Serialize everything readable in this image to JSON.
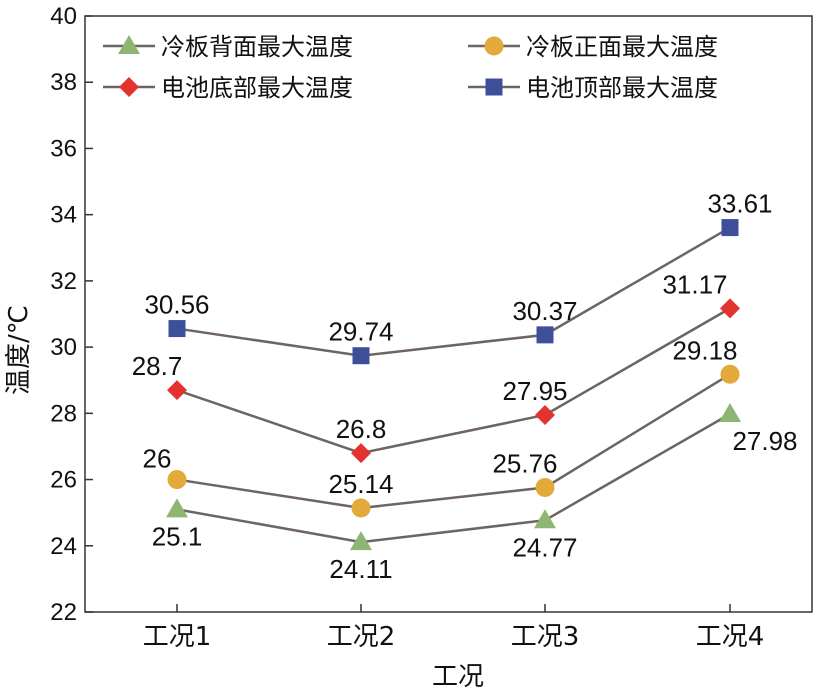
{
  "chart_data": {
    "type": "line",
    "xlabel": "工况",
    "ylabel": "温度/℃",
    "ylim": [
      22,
      40
    ],
    "yticks": [
      22,
      24,
      26,
      28,
      30,
      32,
      34,
      36,
      38,
      40
    ],
    "categories": [
      "工况1",
      "工况2",
      "工况3",
      "工况4"
    ],
    "grid": false,
    "legend_position": "top",
    "series": [
      {
        "name": "冷板背面最大温度",
        "values": [
          25.1,
          24.11,
          24.77,
          27.98
        ],
        "labels": [
          "25.1",
          "24.11",
          "24.77",
          "27.98"
        ],
        "marker": "triangle",
        "color": "#8fb573"
      },
      {
        "name": "冷板正面最大温度",
        "values": [
          26,
          25.14,
          25.76,
          29.18
        ],
        "labels": [
          "26",
          "25.14",
          "25.76",
          "29.18"
        ],
        "marker": "circle",
        "color": "#e3a93a"
      },
      {
        "name": "电池底部最大温度",
        "values": [
          28.7,
          26.8,
          27.95,
          31.17
        ],
        "labels": [
          "28.7",
          "26.8",
          "27.95",
          "31.17"
        ],
        "marker": "diamond",
        "color": "#e4322f"
      },
      {
        "name": "电池顶部最大温度",
        "values": [
          30.56,
          29.74,
          30.37,
          33.61
        ],
        "labels": [
          "30.56",
          "29.74",
          "30.37",
          "33.61"
        ],
        "marker": "square",
        "color": "#3d4f99"
      }
    ],
    "line_color": "#6e6464"
  }
}
